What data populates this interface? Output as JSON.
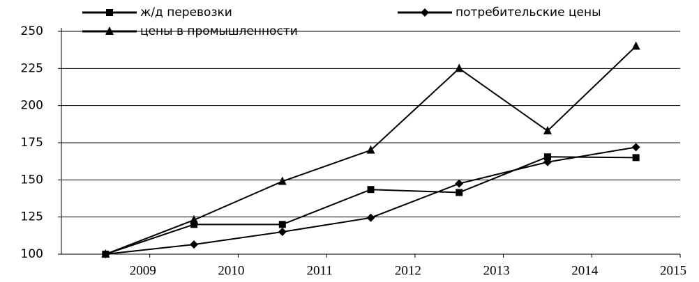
{
  "chart_data": {
    "type": "line",
    "categories": [
      "2009",
      "2010",
      "2011",
      "2012",
      "2013",
      "2014",
      "2015"
    ],
    "series": [
      {
        "name": "ж/д перевозки",
        "color": "#000000",
        "marker": "square",
        "values": [
          100,
          120,
          120,
          143.5,
          141.5,
          165.5,
          165
        ]
      },
      {
        "name": "потребительские цены",
        "color": "#000000",
        "marker": "diamond",
        "values": [
          100,
          106.5,
          115,
          124.5,
          147.5,
          162,
          172
        ]
      },
      {
        "name": "цены в промышленности",
        "color": "#000000",
        "marker": "triangle",
        "values": [
          100,
          123,
          149,
          170,
          225,
          183,
          240
        ]
      }
    ],
    "ylim": [
      100,
      250
    ],
    "yticks": [
      100,
      125,
      150,
      175,
      200,
      225,
      250
    ],
    "grid": true
  }
}
